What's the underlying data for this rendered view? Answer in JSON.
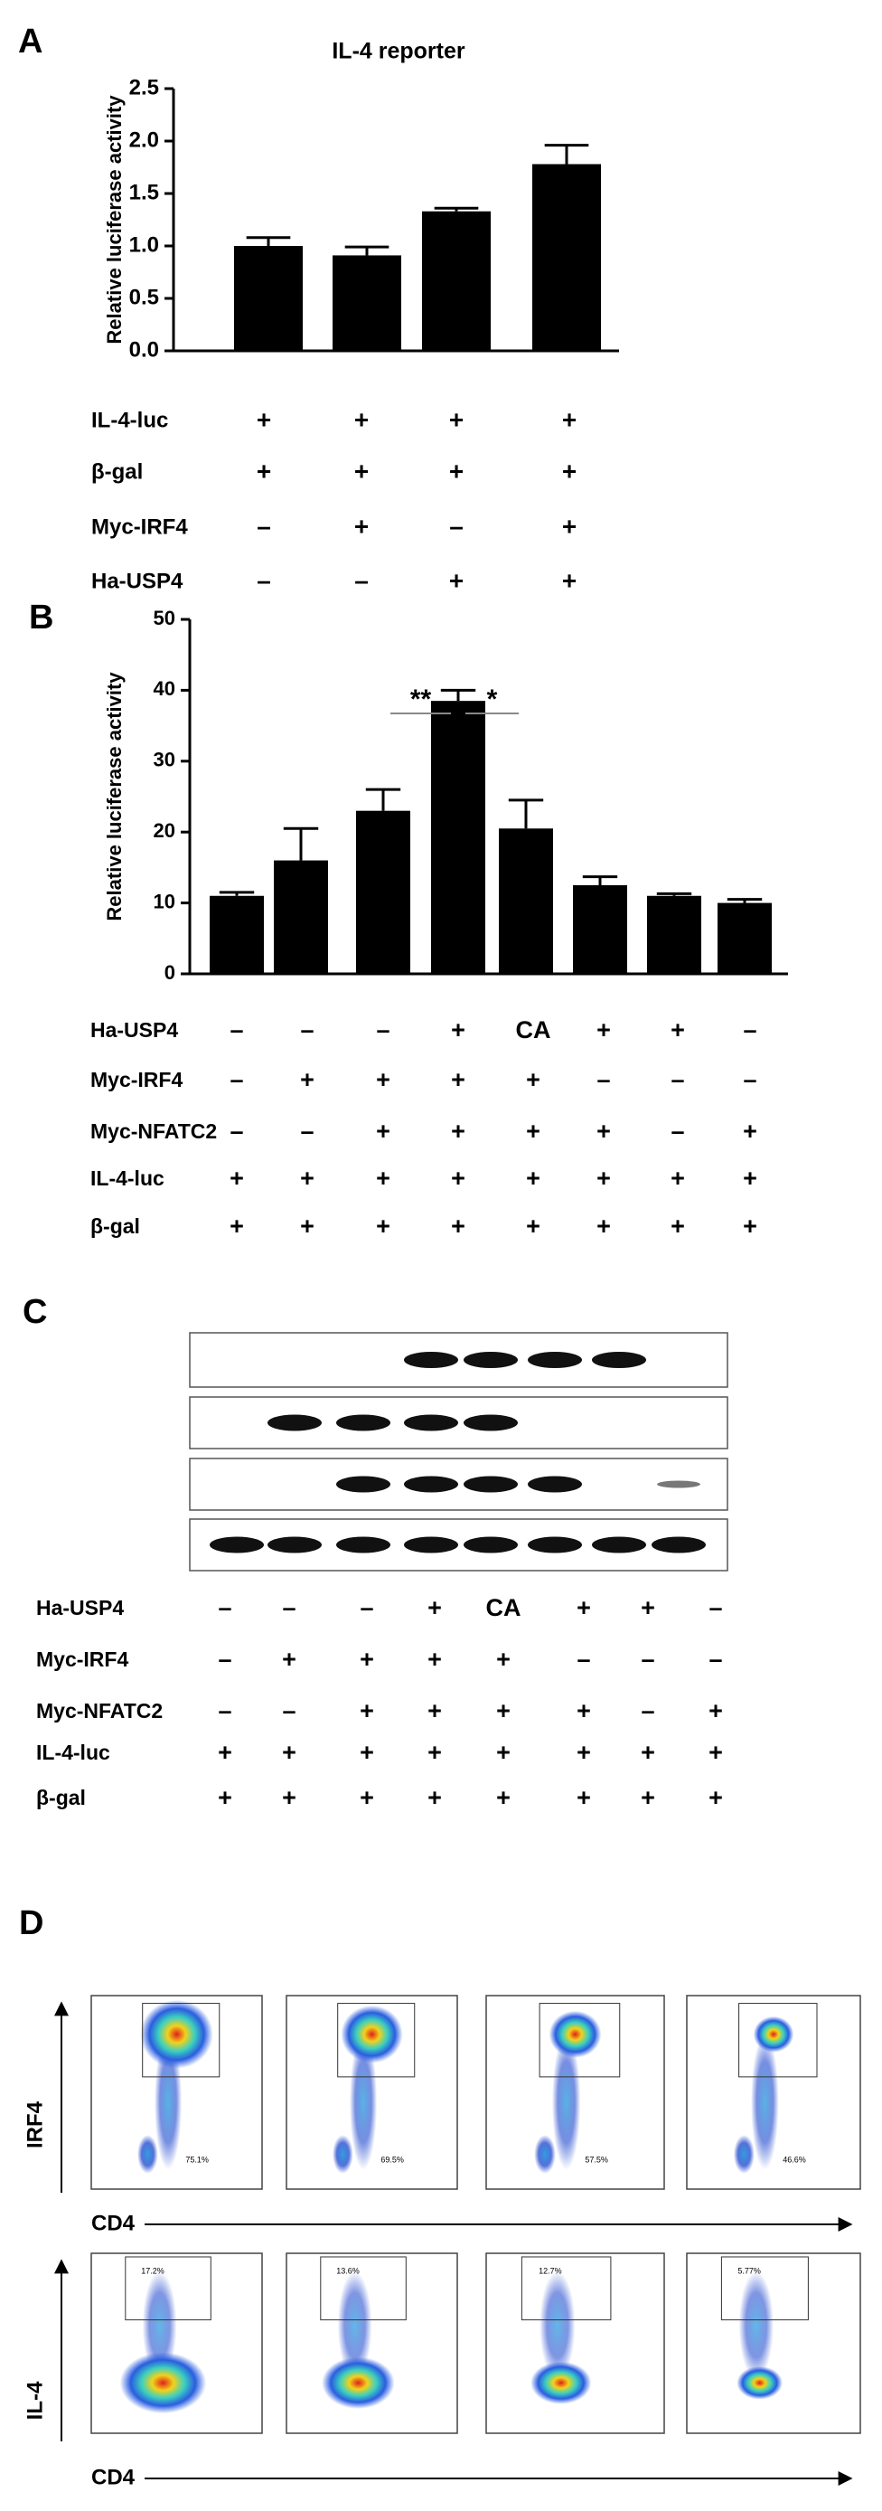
{
  "panels": [
    "A",
    "B",
    "C",
    "D"
  ],
  "chart_data": [
    {
      "type": "bar",
      "title": "IL-4 reporter",
      "y_label": "Relative luciferase activity",
      "categories": [
        null,
        null,
        null,
        null
      ],
      "values": [
        1.0,
        0.91,
        1.33,
        1.78
      ],
      "errors": [
        0.08,
        0.08,
        0.03,
        0.18
      ],
      "color": "#000000",
      "ylim": [
        0,
        2.5
      ],
      "yticks": [
        {
          "value": 0,
          "label": "0.0"
        },
        {
          "value": 0.5,
          "label": "0.5"
        },
        {
          "value": 1,
          "label": "1.0"
        },
        {
          "value": 1.5,
          "label": "1.5"
        },
        {
          "value": 2,
          "label": "2.0"
        },
        {
          "value": 2.5,
          "label": "2.5"
        }
      ]
    },
    {
      "type": "bar",
      "y_label": "Relative luciferase activity",
      "categories": [
        null,
        null,
        null,
        null,
        null,
        null,
        null,
        null
      ],
      "values": [
        11,
        16,
        23,
        38.5,
        20.5,
        12.5,
        11,
        10
      ],
      "errors": [
        0.5,
        4.5,
        3,
        1.5,
        4,
        1.2,
        0.3,
        0.5
      ],
      "color": "#000000",
      "ylim": [
        0,
        50
      ],
      "yticks": [
        0,
        10,
        20,
        30,
        40,
        50
      ],
      "annotations": [
        "**",
        "*"
      ]
    }
  ],
  "conditions": {
    "a": [
      {
        "name": "IL-4-luc",
        "marks": [
          "+",
          "+",
          "+",
          "+"
        ]
      },
      {
        "name": "β-gal",
        "marks": [
          "+",
          "+",
          "+",
          "+"
        ]
      },
      {
        "name": "Myc-IRF4",
        "marks": [
          "–",
          "+",
          "–",
          "+"
        ]
      },
      {
        "name": "Ha-USP4",
        "marks": [
          "–",
          "–",
          "+",
          "+"
        ]
      }
    ],
    "b": [
      {
        "name": "Ha-USP4",
        "marks": [
          "–",
          "–",
          "–",
          "+",
          "CA",
          "+",
          "+",
          "–"
        ]
      },
      {
        "name": "Myc-IRF4",
        "marks": [
          "–",
          "+",
          "+",
          "+",
          "+",
          "–",
          "–",
          "–"
        ]
      },
      {
        "name": "Myc-NFATC2",
        "marks": [
          "–",
          "–",
          "+",
          "+",
          "+",
          "+",
          "–",
          "+"
        ]
      },
      {
        "name": "IL-4-luc",
        "marks": [
          "+",
          "+",
          "+",
          "+",
          "+",
          "+",
          "+",
          "+"
        ]
      },
      {
        "name": "β-gal",
        "marks": [
          "+",
          "+",
          "+",
          "+",
          "+",
          "+",
          "+",
          "+"
        ]
      }
    ],
    "c": [
      {
        "name": "Ha-USP4",
        "marks": [
          "–",
          "–",
          "–",
          "+",
          "CA",
          "+",
          "+",
          "–"
        ]
      },
      {
        "name": "Myc-IRF4",
        "marks": [
          "–",
          "+",
          "+",
          "+",
          "+",
          "–",
          "–",
          "–"
        ]
      },
      {
        "name": "Myc-NFATC2",
        "marks": [
          "–",
          "–",
          "+",
          "+",
          "+",
          "+",
          "–",
          "+"
        ]
      },
      {
        "name": "IL-4-luc",
        "marks": [
          "+",
          "+",
          "+",
          "+",
          "+",
          "+",
          "+",
          "+"
        ]
      },
      {
        "name": "β-gal",
        "marks": [
          "+",
          "+",
          "+",
          "+",
          "+",
          "+",
          "+",
          "+"
        ]
      }
    ]
  },
  "flow": [
    {
      "y_label": "IRF4",
      "x_label": "CD4",
      "gates": [
        "75.1%",
        "69.5%",
        "57.5%",
        "46.6%"
      ]
    },
    {
      "y_label": "IL-4",
      "x_label": "CD4",
      "gates": [
        "17.2%",
        "13.6%",
        "12.7%",
        "5.77%"
      ]
    }
  ]
}
